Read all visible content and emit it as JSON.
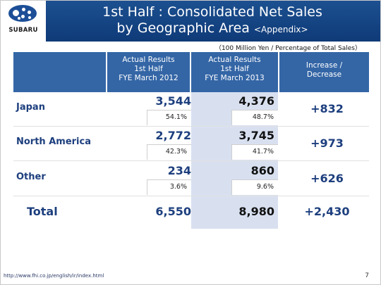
{
  "logo": {
    "text": "SUBARU"
  },
  "title": {
    "line1": "1st Half : Consolidated Net Sales",
    "line2_main": "by Geographic Area",
    "line2_tag": "<Appendix>"
  },
  "units": "（100 Million Yen / Percentage of Total Sales）",
  "columns": {
    "col1": [
      "Actual Results",
      "1st Half",
      "FYE March 2012"
    ],
    "col2": [
      "Actual Results",
      "1st Half",
      "FYE March 2013"
    ],
    "col3": [
      "Increase /",
      "Decrease"
    ]
  },
  "rows": [
    {
      "label": "Japan",
      "v2012": "3,544",
      "p2012": "54.1%",
      "v2013": "4,376",
      "p2013": "48.7%",
      "change": "+832"
    },
    {
      "label": "North America",
      "v2012": "2,772",
      "p2012": "42.3%",
      "v2013": "3,745",
      "p2013": "41.7%",
      "change": "+973"
    },
    {
      "label": "Other",
      "v2012": "234",
      "p2012": "3.6%",
      "v2013": "860",
      "p2013": "9.6%",
      "change": "+626"
    }
  ],
  "total": {
    "label": "Total",
    "v2012": "6,550",
    "v2013": "8,980",
    "change": "+2,430"
  },
  "footer": {
    "url": "http://www.fhi.co.jp/english/ir/index.html",
    "page": "7"
  }
}
